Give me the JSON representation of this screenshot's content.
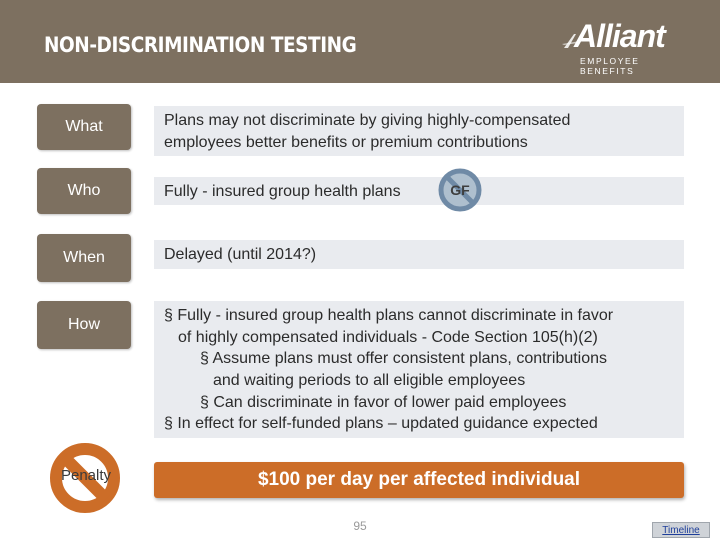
{
  "header": {
    "title": "NON-DISCRIMINATION TESTING",
    "logo_text": "Alliant",
    "logo_subtext": "EMPLOYEE BENEFITS"
  },
  "rows": {
    "what": {
      "label": "What",
      "line1": "Plans may not discriminate by giving highly-compensated",
      "line2": "employees better benefits or premium contributions"
    },
    "who": {
      "label": "Who",
      "text": "Fully - insured group health plans",
      "badge": "GF"
    },
    "when": {
      "label": "When",
      "text": "Delayed (until 2014?)"
    },
    "how": {
      "label": "How",
      "lines": [
        "§  Fully - insured group health plans cannot discriminate in favor",
        "of highly compensated individuals - Code Section 105(h)(2)",
        "§ Assume plans must offer consistent plans, contributions",
        "and waiting periods to all eligible employees",
        "§ Can discriminate in favor of lower paid employees",
        "§  In effect for self-funded plans – updated guidance expected"
      ]
    }
  },
  "penalty": {
    "label": "Penalty",
    "text": "$100 per day per affected individual"
  },
  "footer": {
    "page_number": "95",
    "timeline_link": "Timeline"
  },
  "colors": {
    "brand_brown": "#7d7060",
    "content_gray": "#e9ebef",
    "penalty_orange": "#cc6d28",
    "badge_blue": "#6f8aa6"
  }
}
